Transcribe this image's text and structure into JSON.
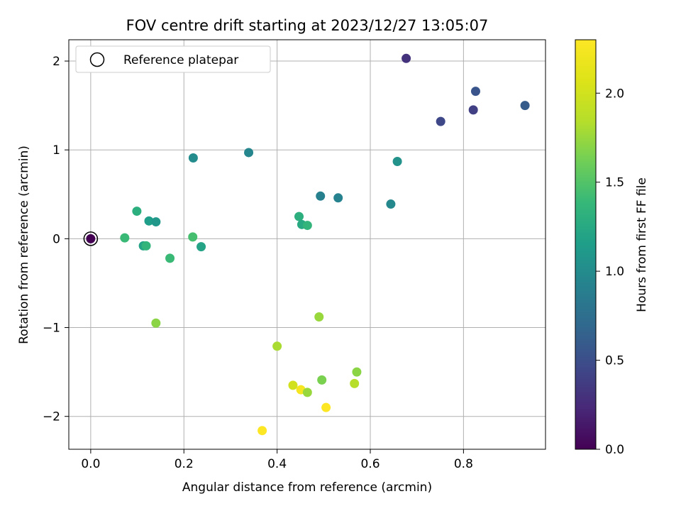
{
  "chart_data": {
    "type": "scatter",
    "title": "FOV centre drift starting at 2023/12/27 13:05:07",
    "xlabel": "Angular distance from reference (arcmin)",
    "ylabel": "Rotation from reference (arcmin)",
    "xlim": [
      -0.047,
      0.976
    ],
    "ylim": [
      -2.37,
      2.24
    ],
    "xticks": [
      0.0,
      0.2,
      0.4,
      0.6,
      0.8
    ],
    "xtick_labels": [
      "0.0",
      "0.2",
      "0.4",
      "0.6",
      "0.8"
    ],
    "yticks": [
      -2,
      -1,
      0,
      1,
      2
    ],
    "ytick_labels": [
      "−2",
      "−1",
      "0",
      "1",
      "2"
    ],
    "grid": true,
    "legend": {
      "placement": "top-left",
      "entries": [
        "Reference platepar"
      ]
    },
    "colorbar": {
      "label": "Hours from first FF file",
      "range": [
        0.0,
        2.3
      ],
      "ticks": [
        0.0,
        0.5,
        1.0,
        1.5,
        2.0
      ],
      "tick_labels": [
        "0.0",
        "0.5",
        "1.0",
        "1.5",
        "2.0"
      ],
      "colormap": "viridis"
    },
    "reference_point": {
      "x": 0.0,
      "y": 0.0
    },
    "points": [
      {
        "x": 0.0,
        "y": 0.0,
        "hours": 0.0
      },
      {
        "x": 0.677,
        "y": 2.03,
        "hours": 0.3
      },
      {
        "x": 0.826,
        "y": 1.66,
        "hours": 0.55
      },
      {
        "x": 0.821,
        "y": 1.45,
        "hours": 0.4
      },
      {
        "x": 0.932,
        "y": 1.5,
        "hours": 0.6
      },
      {
        "x": 0.751,
        "y": 1.32,
        "hours": 0.45
      },
      {
        "x": 0.22,
        "y": 0.91,
        "hours": 1.0
      },
      {
        "x": 0.339,
        "y": 0.97,
        "hours": 0.95
      },
      {
        "x": 0.658,
        "y": 0.87,
        "hours": 1.05
      },
      {
        "x": 0.493,
        "y": 0.48,
        "hours": 0.9
      },
      {
        "x": 0.531,
        "y": 0.46,
        "hours": 0.92
      },
      {
        "x": 0.644,
        "y": 0.39,
        "hours": 0.97
      },
      {
        "x": 0.447,
        "y": 0.25,
        "hours": 1.3
      },
      {
        "x": 0.453,
        "y": 0.16,
        "hours": 1.25
      },
      {
        "x": 0.465,
        "y": 0.15,
        "hours": 1.35
      },
      {
        "x": 0.099,
        "y": 0.31,
        "hours": 1.3
      },
      {
        "x": 0.125,
        "y": 0.2,
        "hours": 1.15
      },
      {
        "x": 0.14,
        "y": 0.19,
        "hours": 1.1
      },
      {
        "x": 0.073,
        "y": 0.01,
        "hours": 1.4
      },
      {
        "x": 0.113,
        "y": -0.08,
        "hours": 1.2
      },
      {
        "x": 0.119,
        "y": -0.08,
        "hours": 1.35
      },
      {
        "x": 0.17,
        "y": -0.22,
        "hours": 1.4
      },
      {
        "x": 0.219,
        "y": 0.02,
        "hours": 1.45
      },
      {
        "x": 0.237,
        "y": -0.09,
        "hours": 1.2
      },
      {
        "x": 0.14,
        "y": -0.95,
        "hours": 1.7
      },
      {
        "x": 0.49,
        "y": -0.88,
        "hours": 1.75
      },
      {
        "x": 0.4,
        "y": -1.21,
        "hours": 1.8
      },
      {
        "x": 0.571,
        "y": -1.5,
        "hours": 1.7
      },
      {
        "x": 0.496,
        "y": -1.59,
        "hours": 1.65
      },
      {
        "x": 0.566,
        "y": -1.63,
        "hours": 1.85
      },
      {
        "x": 0.434,
        "y": -1.65,
        "hours": 2.0
      },
      {
        "x": 0.451,
        "y": -1.7,
        "hours": 2.25
      },
      {
        "x": 0.465,
        "y": -1.73,
        "hours": 1.75
      },
      {
        "x": 0.505,
        "y": -1.9,
        "hours": 2.3
      },
      {
        "x": 0.368,
        "y": -2.16,
        "hours": 2.3
      }
    ]
  }
}
